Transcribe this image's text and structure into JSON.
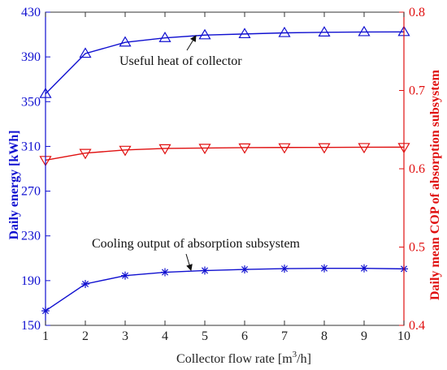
{
  "chart_data": {
    "type": "line",
    "xlabel_main": "Collector flow rate  [m",
    "xlabel_sup": "3",
    "xlabel_tail": "/h]",
    "ylabel_left": "Daily energy [kWh]",
    "ylabel_right": "Daily mean COP of absorption subsystem",
    "x": [
      1,
      2,
      3,
      4,
      5,
      6,
      7,
      8,
      9,
      10
    ],
    "xlim": [
      1,
      10
    ],
    "y_left_lim": [
      150,
      430
    ],
    "y_left_ticks": [
      150,
      190,
      230,
      270,
      310,
      350,
      390,
      430
    ],
    "y_right_lim": [
      0.4,
      0.8
    ],
    "y_right_ticks": [
      "0.4",
      "0.5",
      "0.6",
      "0.7",
      "0.8"
    ],
    "series": [
      {
        "name": "Useful heat of collector",
        "axis": "left",
        "marker": "triangle-up",
        "color": "#1010d0",
        "values": [
          357,
          393,
          403,
          407,
          409.5,
          410.5,
          411.5,
          412,
          412.3,
          412.4
        ]
      },
      {
        "name": "",
        "axis": "right",
        "marker": "triangle-down",
        "color": "#e01010",
        "values": [
          0.611,
          0.62,
          0.624,
          0.626,
          0.6265,
          0.627,
          0.6272,
          0.6273,
          0.6275,
          0.6276
        ]
      },
      {
        "name": "Cooling output of absorption subsystem",
        "axis": "left",
        "marker": "asterisk",
        "color": "#1010d0",
        "values": [
          163,
          187,
          194.5,
          197.5,
          199,
          200,
          200.7,
          201,
          201,
          200.5
        ]
      }
    ],
    "annotations": [
      {
        "text": "Useful heat of collector",
        "points_to_series": 0,
        "x": 4.6
      },
      {
        "text": "Cooling output of absorption subsystem",
        "points_to_series": 2,
        "x": 4.6
      }
    ]
  }
}
